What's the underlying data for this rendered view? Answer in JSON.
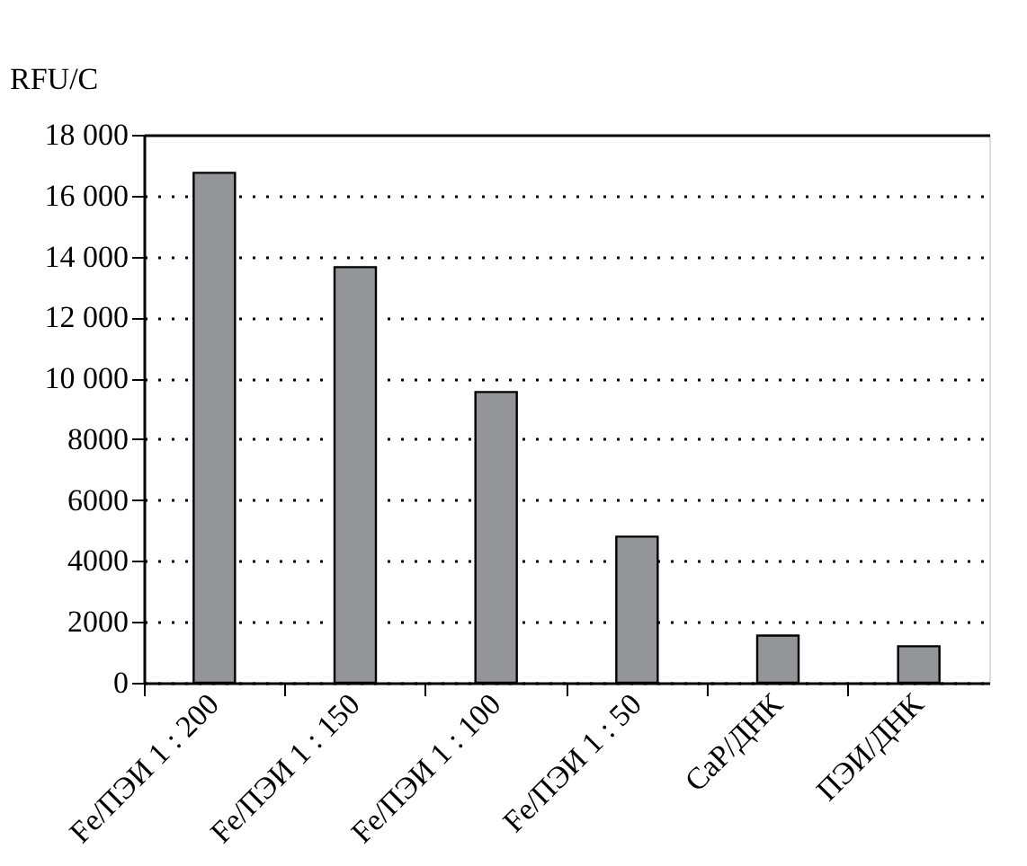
{
  "chart_data": {
    "type": "bar",
    "ylabel": "RFU/C",
    "categories": [
      "Fe/ПЭИ 1 : 200",
      "Fe/ПЭИ 1 : 150",
      "Fe/ПЭИ 1 : 100",
      "Fe/ПЭИ 1 : 50",
      "CaP/ДНК",
      "ПЭИ/ДНК"
    ],
    "values": [
      16750,
      13650,
      9550,
      4800,
      1550,
      1200
    ],
    "color": "#939598",
    "ylim": [
      0,
      18000
    ],
    "yticks": [
      0,
      2000,
      4000,
      6000,
      8000,
      {
        "value": 10000,
        "label": "10 000"
      },
      {
        "value": 12000,
        "label": "12 000"
      },
      {
        "value": 14000,
        "label": "14 000"
      },
      {
        "value": 16000,
        "label": "16 000"
      },
      {
        "value": 18000,
        "label": "18 000"
      }
    ],
    "grid": "y"
  }
}
